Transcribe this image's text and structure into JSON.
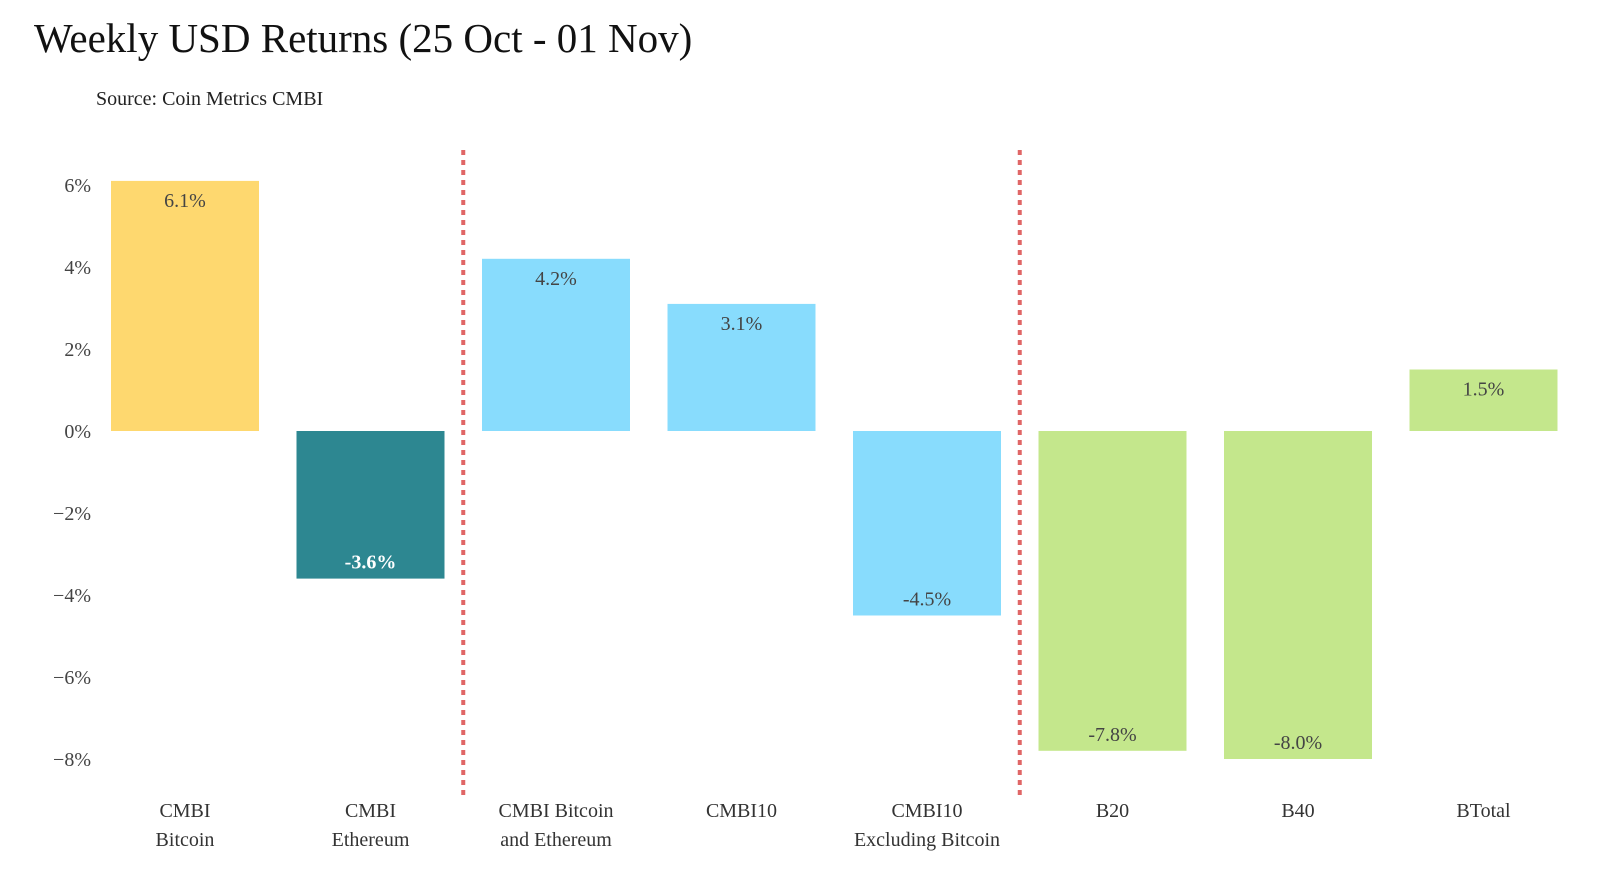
{
  "chart_data": {
    "type": "bar",
    "title": "Weekly USD Returns (25 Oct - 01 Nov)",
    "subtitle": "Source: Coin Metrics CMBI",
    "xlabel": "",
    "ylabel": "",
    "ylim": [
      -8.8,
      6.1
    ],
    "yticks": [
      6,
      4,
      2,
      0,
      -2,
      -4,
      -6,
      -8
    ],
    "ytick_labels": [
      "6%",
      "4%",
      "2%",
      "0%",
      "−2%",
      "−4%",
      "−6%",
      "−8%"
    ],
    "grid": false,
    "legend": "none",
    "categories": [
      [
        "CMBI",
        "Bitcoin"
      ],
      [
        "CMBI",
        "Ethereum"
      ],
      [
        "CMBI Bitcoin",
        "and Ethereum"
      ],
      [
        "CMBI10"
      ],
      [
        "CMBI10",
        "Excluding Bitcoin"
      ],
      [
        "B20"
      ],
      [
        "B40"
      ],
      [
        "BTotal"
      ]
    ],
    "values": [
      6.1,
      -3.6,
      4.2,
      3.1,
      -4.5,
      -7.8,
      -8.0,
      1.5
    ],
    "data_labels": [
      "6.1%",
      "-3.6%",
      "4.2%",
      "3.1%",
      "-4.5%",
      "-7.8%",
      "-8.0%",
      "1.5%"
    ],
    "colors": [
      "#FED86F",
      "#2D8791",
      "#88DCFD",
      "#88DCFD",
      "#88DCFD",
      "#C4E78C",
      "#C4E78C",
      "#C4E78C"
    ],
    "label_colors": [
      "dark",
      "light",
      "dark",
      "dark",
      "dark",
      "dark",
      "dark",
      "dark"
    ],
    "separators": {
      "after_category_index": [
        1,
        4
      ],
      "color": "#E06666",
      "style": "dotted"
    }
  }
}
